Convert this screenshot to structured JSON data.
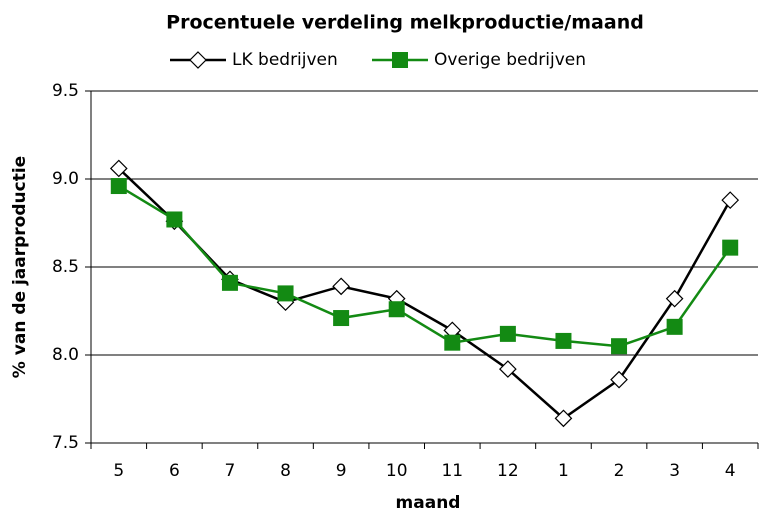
{
  "chart_data": {
    "type": "line",
    "title": "Procentuele verdeling melkproductie/maand",
    "x_label": "maand",
    "y_label": "% van de jaarproductie",
    "categories": [
      "5",
      "6",
      "7",
      "8",
      "9",
      "10",
      "11",
      "12",
      "1",
      "2",
      "3",
      "4"
    ],
    "series": [
      {
        "name": "LK bedrijven",
        "color": "#000000",
        "marker": "diamond",
        "values": [
          9.06,
          8.76,
          8.43,
          8.3,
          8.39,
          8.32,
          8.14,
          7.92,
          7.64,
          7.86,
          8.32,
          8.88
        ]
      },
      {
        "name": "Overige bedrijven",
        "color": "#138a13",
        "marker": "square",
        "values": [
          8.96,
          8.77,
          8.41,
          8.35,
          8.21,
          8.26,
          8.07,
          8.12,
          8.08,
          8.05,
          8.16,
          8.61
        ]
      }
    ],
    "ylim": [
      7.5,
      9.5
    ],
    "yticks": [
      7.5,
      {
        "value": 8,
        "label": "8.0"
      },
      8.5,
      {
        "value": 9,
        "label": "9.0"
      },
      9.5
    ],
    "grid": true,
    "legend": "top"
  }
}
